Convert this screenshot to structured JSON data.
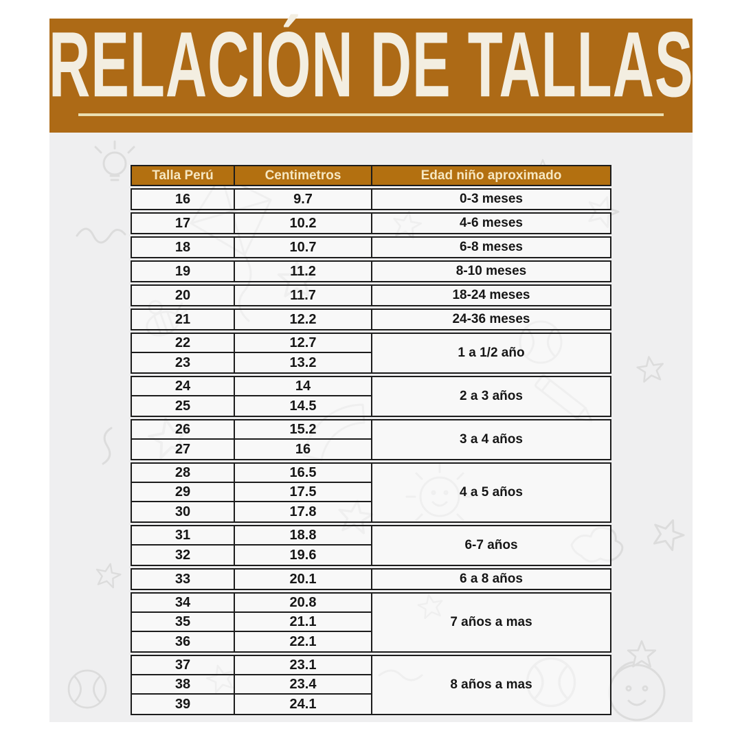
{
  "banner": {
    "underline": true
  },
  "colors": {
    "banner_orange": "#ad6a16",
    "table_header_orange": "#b37010",
    "underline_cream": "#eadfb2",
    "border_dark": "#1c1c1c",
    "background_gray": "#efeff0",
    "doodle_gray": "#dcdcdc"
  },
  "chart_data": {
    "type": "table",
    "title": "RELACIÓN DE TALLAS",
    "columns": [
      "Talla Perú",
      "Centimetros",
      "Edad niño aproximado"
    ],
    "groups": [
      {
        "age": "0-3 meses",
        "rows": [
          [
            "16",
            "9.7"
          ]
        ]
      },
      {
        "age": "4-6 meses",
        "rows": [
          [
            "17",
            "10.2"
          ]
        ]
      },
      {
        "age": "6-8 meses",
        "rows": [
          [
            "18",
            "10.7"
          ]
        ]
      },
      {
        "age": "8-10 meses",
        "rows": [
          [
            "19",
            "11.2"
          ]
        ]
      },
      {
        "age": "18-24 meses",
        "rows": [
          [
            "20",
            "11.7"
          ]
        ]
      },
      {
        "age": "24-36 meses",
        "rows": [
          [
            "21",
            "12.2"
          ]
        ]
      },
      {
        "age": "1 a 1/2 año",
        "rows": [
          [
            "22",
            "12.7"
          ],
          [
            "23",
            "13.2"
          ]
        ]
      },
      {
        "age": "2 a 3 años",
        "rows": [
          [
            "24",
            "14"
          ],
          [
            "25",
            "14.5"
          ]
        ]
      },
      {
        "age": "3 a  4 años",
        "rows": [
          [
            "26",
            "15.2"
          ],
          [
            "27",
            "16"
          ]
        ]
      },
      {
        "age": "4  a  5 años",
        "rows": [
          [
            "28",
            "16.5"
          ],
          [
            "29",
            "17.5"
          ],
          [
            "30",
            "17.8"
          ]
        ]
      },
      {
        "age": "6-7 años",
        "rows": [
          [
            "31",
            "18.8"
          ],
          [
            "32",
            "19.6"
          ]
        ]
      },
      {
        "age": "6 a 8 años",
        "rows": [
          [
            "33",
            "20.1"
          ]
        ]
      },
      {
        "age": "7 años a mas",
        "rows": [
          [
            "34",
            "20.8"
          ],
          [
            "35",
            "21.1"
          ],
          [
            "36",
            "22.1"
          ]
        ]
      },
      {
        "age": "8 años a mas",
        "rows": [
          [
            "37",
            "23.1"
          ],
          [
            "38",
            "23.4"
          ],
          [
            "39",
            "24.1"
          ]
        ]
      }
    ]
  }
}
